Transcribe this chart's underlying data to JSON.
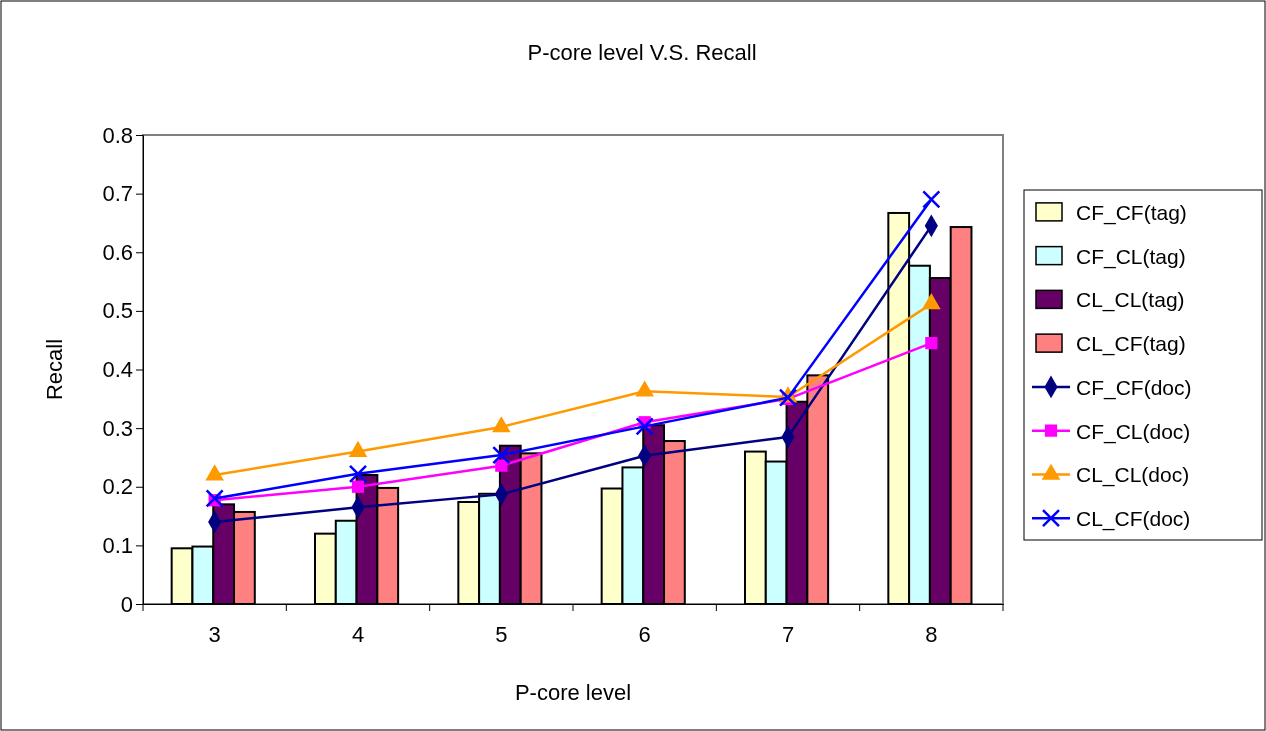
{
  "chart_data": {
    "type": "bar",
    "title": "P-core level V.S. Recall",
    "xlabel": "P-core level",
    "ylabel": "Recall",
    "categories": [
      "3",
      "4",
      "5",
      "6",
      "7",
      "8"
    ],
    "ylim": [
      0,
      0.8
    ],
    "yticks": [
      0,
      0.1,
      0.2,
      0.3,
      0.4,
      0.5,
      0.6,
      0.7,
      0.8
    ],
    "grid": false,
    "legend": "right",
    "series": [
      {
        "name": "CF_CF(tag)",
        "color": "#ffffcc",
        "values": [
          0.095,
          0.12,
          0.174,
          0.197,
          0.26,
          0.667
        ]
      },
      {
        "name": "CF_CL(tag)",
        "color": "#ccffff",
        "values": [
          0.098,
          0.142,
          0.188,
          0.233,
          0.243,
          0.577
        ]
      },
      {
        "name": "CL_CL(tag)",
        "color": "#660066",
        "values": [
          0.17,
          0.22,
          0.27,
          0.305,
          0.345,
          0.556
        ]
      },
      {
        "name": "CL_CF(tag)",
        "color": "#ff8080",
        "values": [
          0.157,
          0.198,
          0.257,
          0.278,
          0.39,
          0.643
        ]
      },
      {
        "name": "CF_CF(doc)",
        "type": "line",
        "marker": "diamond",
        "color": "#000080",
        "values": [
          0.14,
          0.165,
          0.187,
          0.253,
          0.285,
          0.645
        ]
      },
      {
        "name": "CF_CL(doc)",
        "type": "line",
        "marker": "square",
        "color": "#ff00ff",
        "values": [
          0.177,
          0.2,
          0.236,
          0.31,
          0.35,
          0.445
        ]
      },
      {
        "name": "CL_CL(doc)",
        "type": "line",
        "marker": "triangle",
        "color": "#ff9900",
        "values": [
          0.22,
          0.26,
          0.302,
          0.363,
          0.353,
          0.512
        ]
      },
      {
        "name": "CL_CF(doc)",
        "type": "line",
        "marker": "cross",
        "color": "#0000ff",
        "values": [
          0.18,
          0.222,
          0.254,
          0.303,
          0.352,
          0.69
        ]
      }
    ]
  }
}
